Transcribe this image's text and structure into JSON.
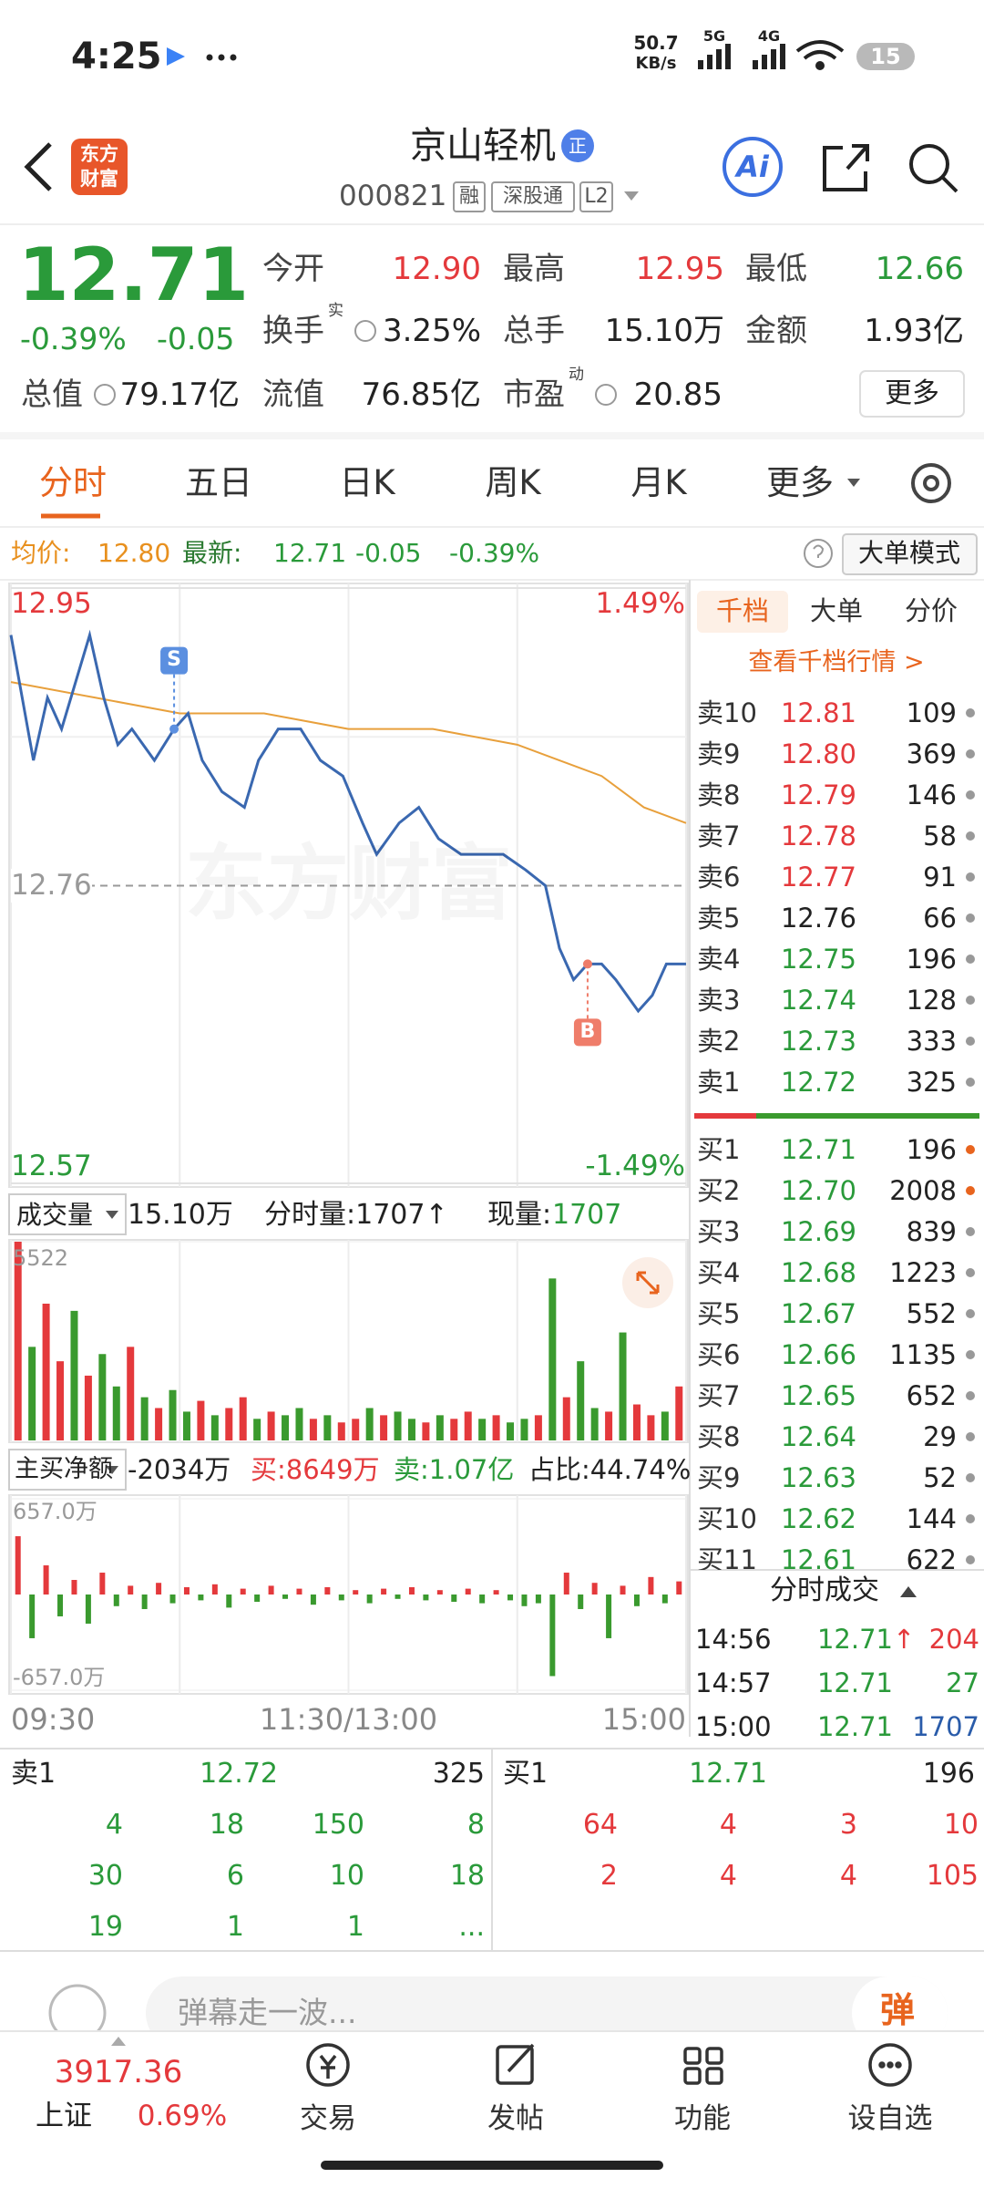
{
  "status_bar": {
    "time": "4:25",
    "net_speed": "50.7",
    "net_unit": "KB/s",
    "signal1": "5G",
    "signal2": "4G",
    "battery": "15"
  },
  "header": {
    "logo": [
      "东方",
      "财富"
    ],
    "title": "京山轻机",
    "badge": "正",
    "code": "000821",
    "tags": [
      "融",
      "深股通",
      "L2"
    ],
    "ai": "Ai"
  },
  "quote": {
    "price": "12.71",
    "change_pct": "-0.39%",
    "change": "-0.05",
    "color": "#2a9a3a",
    "fields": [
      {
        "label": "今开",
        "value": "12.90",
        "color": "#e4393c"
      },
      {
        "label": "最高",
        "value": "12.95",
        "color": "#e4393c"
      },
      {
        "label": "最低",
        "value": "12.66",
        "color": "#2a9a3a"
      },
      {
        "label": "换手",
        "sup": "实",
        "value": "3.25%",
        "color": "#222"
      },
      {
        "label": "总手",
        "value": "15.10万",
        "color": "#222"
      },
      {
        "label": "金额",
        "value": "1.93亿",
        "color": "#222"
      },
      {
        "label": "总值",
        "value": "79.17亿",
        "color": "#222"
      },
      {
        "label": "流值",
        "value": "76.85亿",
        "color": "#222"
      },
      {
        "label": "市盈",
        "sup": "动",
        "value": "20.85",
        "color": "#222"
      }
    ],
    "more": "更多"
  },
  "tabs": [
    "分时",
    "五日",
    "日K",
    "周K",
    "月K",
    "更多"
  ],
  "info": {
    "avg_label": "均价:",
    "avg": "12.80",
    "last_label": "最新:",
    "last": "12.71",
    "change": "-0.05",
    "change_pct": "-0.39%",
    "mode": "大单模式"
  },
  "watermark": "东方财富",
  "chart_data": [
    {
      "type": "line",
      "xlim": [
        0,
        240
      ],
      "ylim": [
        12.57,
        12.95
      ],
      "yticks": [
        12.57,
        12.76,
        12.95
      ],
      "ytick_colors": [
        "#2a9a3a",
        "#999999",
        "#e4393c"
      ],
      "y2lim": [
        -1.49,
        1.49
      ],
      "y2ticks": [
        {
          "value": -1.49,
          "label": "-1.49%"
        },
        {
          "value": 1.49,
          "label": "1.49%"
        }
      ],
      "y2tick_colors": [
        "#2a9a3a",
        "#e4393c"
      ],
      "series": [
        {
          "color": "#3a68b0",
          "x": [
            0,
            4,
            8,
            13,
            18,
            23,
            28,
            33,
            38,
            43,
            51,
            58,
            63,
            68,
            75,
            83,
            88,
            95,
            103,
            110,
            118,
            125,
            130,
            138,
            145,
            152,
            160,
            168,
            175,
            183,
            190,
            195,
            200,
            205,
            210,
            215,
            223,
            228,
            233,
            240
          ],
          "values": [
            12.92,
            12.88,
            12.84,
            12.88,
            12.86,
            12.89,
            12.92,
            12.88,
            12.85,
            12.86,
            12.84,
            12.86,
            12.87,
            12.84,
            12.82,
            12.81,
            12.84,
            12.86,
            12.86,
            12.84,
            12.83,
            12.8,
            12.78,
            12.8,
            12.81,
            12.79,
            12.78,
            12.78,
            12.78,
            12.77,
            12.76,
            12.72,
            12.7,
            12.71,
            12.71,
            12.7,
            12.68,
            12.69,
            12.71,
            12.71
          ]
        },
        {
          "color": "#e8a03c",
          "x": [
            0,
            30,
            60,
            90,
            120,
            150,
            180,
            195,
            210,
            225,
            240
          ],
          "values": [
            12.89,
            12.88,
            12.87,
            12.87,
            12.86,
            12.86,
            12.85,
            12.84,
            12.83,
            12.81,
            12.8
          ]
        }
      ],
      "markers": [
        {
          "label": "S",
          "x": 58,
          "value": 12.86,
          "color": "#5b8fe0",
          "position": "above"
        },
        {
          "label": "B",
          "x": 205,
          "value": 12.71,
          "color": "#ef7d6a",
          "position": "below"
        }
      ]
    },
    {
      "type": "bar",
      "title": "成交量",
      "total": "15.10万",
      "minute_volume": "分时量:1707↑",
      "current_label": "现量:",
      "current_value": "1707",
      "xlim": [
        0,
        240
      ],
      "ylim": [
        0,
        5522
      ],
      "yticks": [
        5522
      ],
      "x": [
        2.5,
        7.5,
        12.5,
        17.5,
        22.5,
        27.5,
        32.5,
        37.5,
        42.5,
        47.5,
        52.5,
        57.5,
        62.5,
        67.5,
        72.5,
        77.5,
        82.5,
        87.5,
        92.5,
        97.5,
        102.5,
        107.5,
        112.5,
        117.5,
        122.5,
        127.5,
        132.5,
        137.5,
        142.5,
        147.5,
        152.5,
        157.5,
        162.5,
        167.5,
        172.5,
        177.5,
        182.5,
        187.5,
        192.5,
        197.5,
        202.5,
        207.5,
        212.5,
        217.5,
        222.5,
        227.5,
        232.5,
        237.5
      ],
      "values": [
        5522,
        2600,
        3800,
        2200,
        3600,
        1800,
        2400,
        1500,
        2600,
        1200,
        900,
        1400,
        800,
        1100,
        700,
        900,
        1200,
        600,
        800,
        700,
        900,
        600,
        700,
        500,
        600,
        900,
        700,
        800,
        600,
        500,
        700,
        600,
        800,
        600,
        700,
        500,
        600,
        700,
        4500,
        1200,
        2200,
        900,
        800,
        3000,
        1000,
        700,
        800,
        1500
      ],
      "colors": [
        "#e4393c",
        "#3a9a2e",
        "#e4393c",
        "#e4393c",
        "#3a9a2e",
        "#e4393c",
        "#3a9a2e",
        "#3a9a2e",
        "#e4393c",
        "#3a9a2e",
        "#e4393c",
        "#3a9a2e",
        "#3a9a2e",
        "#e4393c",
        "#3a9a2e",
        "#e4393c",
        "#e4393c",
        "#3a9a2e",
        "#e4393c",
        "#3a9a2e",
        "#3a9a2e",
        "#e4393c",
        "#3a9a2e",
        "#e4393c",
        "#e4393c",
        "#3a9a2e",
        "#e4393c",
        "#3a9a2e",
        "#3a9a2e",
        "#e4393c",
        "#3a9a2e",
        "#e4393c",
        "#e4393c",
        "#3a9a2e",
        "#e4393c",
        "#3a9a2e",
        "#3a9a2e",
        "#e4393c",
        "#3a9a2e",
        "#e4393c",
        "#3a9a2e",
        "#3a9a2e",
        "#e4393c",
        "#3a9a2e",
        "#e4393c",
        "#e4393c",
        "#3a9a2e",
        "#e4393c"
      ]
    },
    {
      "type": "bar",
      "title": "主买净额",
      "net": "-2034万",
      "buy": "买:8649万",
      "sell": "卖:1.07亿",
      "ratio": "占比:44.74%",
      "xlim": [
        0,
        240
      ],
      "ylim": [
        -657,
        657
      ],
      "yticks": [
        {
          "value": -657,
          "label": "-657.0万"
        },
        {
          "value": 657,
          "label": "657.0万"
        }
      ],
      "xticks": [
        {
          "value": 0,
          "label": "09:30"
        },
        {
          "value": 120,
          "label": "11:30/13:00"
        },
        {
          "value": 240,
          "label": "15:00"
        }
      ],
      "up_color": "#e4393c",
      "down_color": "#3a9a2e",
      "x": [
        2.5,
        7.5,
        12.5,
        17.5,
        22.5,
        27.5,
        32.5,
        37.5,
        42.5,
        47.5,
        52.5,
        57.5,
        62.5,
        67.5,
        72.5,
        77.5,
        82.5,
        87.5,
        92.5,
        97.5,
        102.5,
        107.5,
        112.5,
        117.5,
        122.5,
        127.5,
        132.5,
        137.5,
        142.5,
        147.5,
        152.5,
        157.5,
        162.5,
        167.5,
        172.5,
        177.5,
        182.5,
        187.5,
        192.5,
        197.5,
        202.5,
        207.5,
        212.5,
        217.5,
        222.5,
        227.5,
        232.5,
        237.5
      ],
      "values": [
        400,
        -300,
        200,
        -150,
        100,
        -200,
        150,
        -80,
        60,
        -100,
        80,
        -60,
        50,
        -40,
        70,
        -90,
        40,
        -50,
        60,
        -30,
        40,
        -70,
        50,
        -40,
        30,
        -60,
        40,
        -30,
        50,
        -40,
        30,
        -50,
        40,
        -60,
        30,
        -40,
        -80,
        -60,
        -560,
        150,
        -100,
        80,
        -300,
        60,
        -80,
        120,
        -60,
        90
      ]
    }
  ],
  "order_book": {
    "tabs": [
      "千档",
      "大单",
      "分价"
    ],
    "link": "查看千档行情 >",
    "asks": [
      {
        "label": "卖10",
        "price": "12.81",
        "qty": "109",
        "color": "#e4393c"
      },
      {
        "label": "卖9",
        "price": "12.80",
        "qty": "369",
        "color": "#e4393c"
      },
      {
        "label": "卖8",
        "price": "12.79",
        "qty": "146",
        "color": "#e4393c"
      },
      {
        "label": "卖7",
        "price": "12.78",
        "qty": "58",
        "color": "#e4393c"
      },
      {
        "label": "卖6",
        "price": "12.77",
        "qty": "91",
        "color": "#e4393c"
      },
      {
        "label": "卖5",
        "price": "12.76",
        "qty": "66",
        "color": "#222222"
      },
      {
        "label": "卖4",
        "price": "12.75",
        "qty": "196",
        "color": "#2a9a3a"
      },
      {
        "label": "卖3",
        "price": "12.74",
        "qty": "128",
        "color": "#2a9a3a"
      },
      {
        "label": "卖2",
        "price": "12.73",
        "qty": "333",
        "color": "#2a9a3a"
      },
      {
        "label": "卖1",
        "price": "12.72",
        "qty": "325",
        "color": "#2a9a3a"
      }
    ],
    "bids": [
      {
        "label": "买1",
        "price": "12.71",
        "qty": "196",
        "color": "#2a9a3a"
      },
      {
        "label": "买2",
        "price": "12.70",
        "qty": "2008",
        "color": "#2a9a3a"
      },
      {
        "label": "买3",
        "price": "12.69",
        "qty": "839",
        "color": "#2a9a3a"
      },
      {
        "label": "买4",
        "price": "12.68",
        "qty": "1223",
        "color": "#2a9a3a"
      },
      {
        "label": "买5",
        "price": "12.67",
        "qty": "552",
        "color": "#2a9a3a"
      },
      {
        "label": "买6",
        "price": "12.66",
        "qty": "1135",
        "color": "#2a9a3a"
      },
      {
        "label": "买7",
        "price": "12.65",
        "qty": "652",
        "color": "#2a9a3a"
      },
      {
        "label": "买8",
        "price": "12.64",
        "qty": "29",
        "color": "#2a9a3a"
      },
      {
        "label": "买9",
        "price": "12.63",
        "qty": "52",
        "color": "#2a9a3a"
      },
      {
        "label": "买10",
        "price": "12.62",
        "qty": "144",
        "color": "#2a9a3a"
      },
      {
        "label": "买11",
        "price": "12.61",
        "qty": "622",
        "color": "#2a9a3a"
      }
    ],
    "trades_title": "分时成交",
    "trades": [
      {
        "time": "14:56",
        "price": "12.71",
        "arrow": "↑",
        "qty": "204",
        "qty_color": "#e4393c"
      },
      {
        "time": "14:57",
        "price": "12.71",
        "qty": "27",
        "qty_color": "#2a9a3a"
      },
      {
        "time": "15:00",
        "price": "12.71",
        "qty": "1707",
        "qty_color": "#2a5caa"
      }
    ]
  },
  "level1": {
    "sell": {
      "label": "卖1",
      "price": "12.72",
      "qty": "325",
      "color": "#2a9a3a",
      "rows": [
        [
          "4",
          "18",
          "150",
          "8"
        ],
        [
          "30",
          "6",
          "10",
          "18"
        ],
        [
          "19",
          "1",
          "1",
          "..."
        ]
      ]
    },
    "buy": {
      "label": "买1",
      "price": "12.71",
      "qty": "196",
      "color": "#e4393c",
      "rows": [
        [
          "64",
          "4",
          "3",
          "10"
        ],
        [
          "2",
          "4",
          "4",
          "105"
        ]
      ]
    }
  },
  "comment": {
    "placeholder": "弹幕走一波...",
    "button": "弹"
  },
  "index": {
    "value": "3917.36",
    "name": "上证",
    "change": "0.69%"
  },
  "nav": [
    "交易",
    "发帖",
    "功能",
    "设自选"
  ]
}
